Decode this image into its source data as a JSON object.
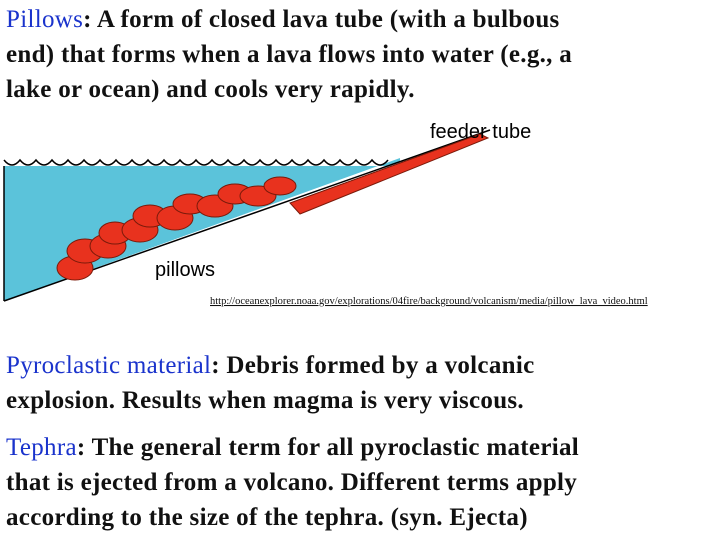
{
  "sections": [
    {
      "term": "Pillows",
      "lines": [
        ": A form of closed lava tube (with a bulbous",
        "end) that forms when a lava flows into water (e.g., a",
        "lake or ocean) and cools very rapidly."
      ]
    },
    {
      "term": "Pyroclastic material",
      "lines": [
        ": Debris formed by a volcanic",
        "explosion.  Results when magma is very viscous."
      ]
    },
    {
      "term": "Tephra",
      "lines": [
        ": The general term for all pyroclastic material",
        "that is ejected from a volcano.  Different terms apply",
        "according to the size of the tephra. (syn. Ejecta)"
      ]
    }
  ],
  "diagram": {
    "labels": {
      "feeder": "feeder tube",
      "pillows": "pillows"
    },
    "source": "http://oceanexplorer.noaa.gov/explorations/04fire/background/volcanism/media/pillow_lava_video.html"
  }
}
